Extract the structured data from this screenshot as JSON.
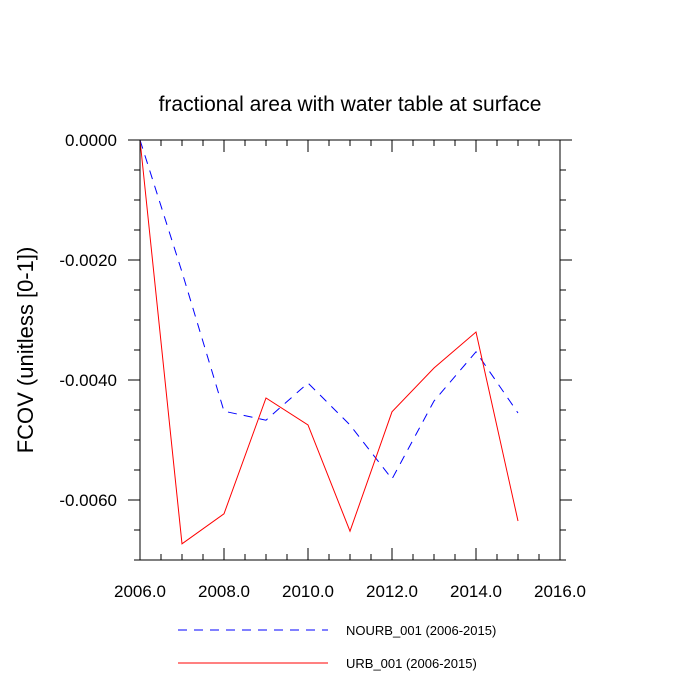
{
  "chart_data": {
    "type": "line",
    "title": "fractional area with water table at surface",
    "xlabel": "",
    "ylabel": "FCOV  (unitless [0-1])",
    "xlim": [
      2006,
      2016
    ],
    "ylim": [
      -0.007,
      0.0
    ],
    "x_ticks": [
      2006,
      2008,
      2010,
      2012,
      2014,
      2016
    ],
    "x_tick_labels": [
      "2006.0",
      "2008.0",
      "2010.0",
      "2012.0",
      "2014.0",
      "2016.0"
    ],
    "x_minor_step": 0.5,
    "y_ticks": [
      0.0,
      -0.002,
      -0.004,
      -0.006
    ],
    "y_tick_labels": [
      "0.0000",
      "-0.0020",
      "-0.0040",
      "-0.0060"
    ],
    "y_minor_step": 0.0005,
    "grid": false,
    "legend_position": "bottom",
    "x": [
      2006,
      2007,
      2008,
      2009,
      2010,
      2011,
      2012,
      2013,
      2014,
      2015
    ],
    "series": [
      {
        "name": "NOURB_001 (2006-2015)",
        "color": "#0000ff",
        "dash": "dashed",
        "values": [
          0.0,
          -0.0022,
          -0.00452,
          -0.00467,
          -0.00405,
          -0.00475,
          -0.00565,
          -0.00435,
          -0.00353,
          -0.00455
        ]
      },
      {
        "name": "URB_001 (2006-2015)",
        "color": "#ff0000",
        "dash": "solid",
        "values": [
          0.0,
          -0.00673,
          -0.00623,
          -0.0043,
          -0.00475,
          -0.00652,
          -0.00453,
          -0.0038,
          -0.0032,
          -0.00635
        ]
      }
    ]
  }
}
